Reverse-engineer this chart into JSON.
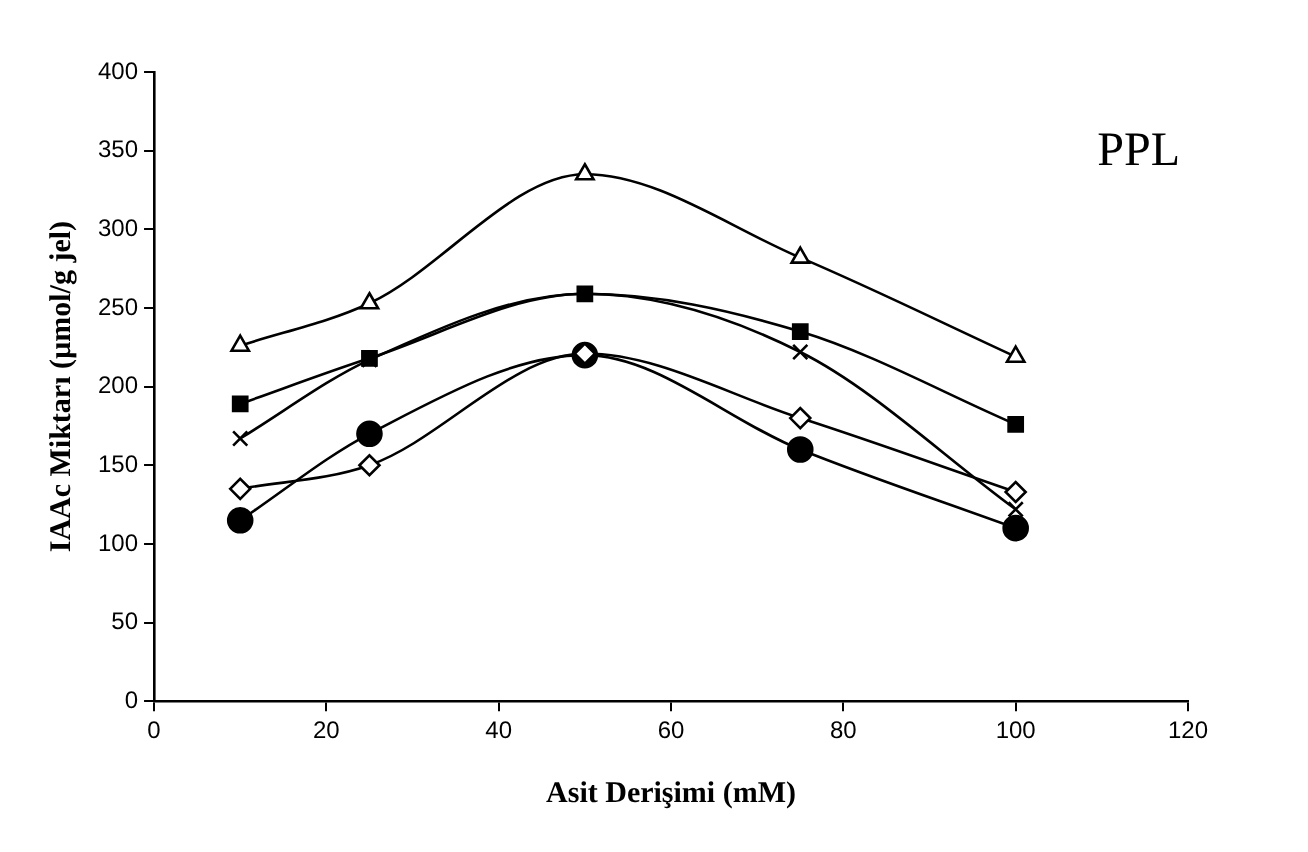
{
  "chart_data": {
    "type": "line",
    "xlabel": "Asit Derişimi (mM)",
    "ylabel": "IAAc Miktarı (µmol/g jel)",
    "annotations": [
      "PPL"
    ],
    "x": [
      10,
      25,
      50,
      75,
      100
    ],
    "series": [
      {
        "color": "#000000",
        "marker": "triangle",
        "values": [
          226,
          253,
          335,
          282,
          219
        ]
      },
      {
        "color": "#000000",
        "marker": "square",
        "values": [
          189,
          218,
          259,
          235,
          176
        ]
      },
      {
        "color": "#000000",
        "marker": "cross",
        "values": [
          167,
          217,
          259,
          222,
          122
        ]
      },
      {
        "color": "#000000",
        "marker": "diamond",
        "values": [
          135,
          150,
          221,
          180,
          133
        ]
      },
      {
        "color": "#000000",
        "marker": "circle",
        "values": [
          115,
          170,
          220,
          160,
          110
        ]
      }
    ],
    "xlim": [
      0,
      120
    ],
    "xticks": [
      0,
      20,
      40,
      60,
      80,
      100,
      120
    ],
    "ylim": [
      0,
      400
    ],
    "yticks": [
      0,
      50,
      100,
      150,
      200,
      250,
      300,
      350,
      400
    ],
    "grid": false,
    "legend": false,
    "line_style": "solid"
  }
}
